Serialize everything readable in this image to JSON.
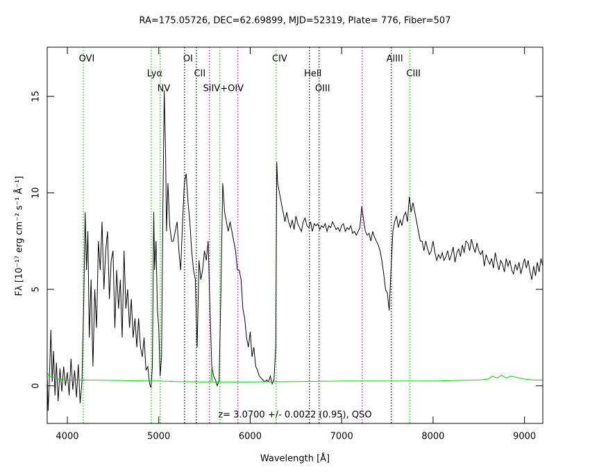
{
  "chart_data": {
    "type": "line",
    "title": "RA=175.05726, DEC=62.69899, MJD=52319, Plate= 776, Fiber=507",
    "xlabel": "Wavelength [Å]",
    "ylabel": "Fλ [10⁻¹⁷ erg cm⁻² s⁻¹ Å⁻¹]",
    "annotation": "z= 3.0700 +/- 0.0022 (0.95), QSO",
    "xlim": [
      3780,
      9200
    ],
    "ylim": [
      -1.95,
      17.55
    ],
    "xticks": [
      4000,
      5000,
      6000,
      7000,
      8000,
      9000
    ],
    "yticks": [
      0,
      5,
      10,
      15
    ],
    "series": [
      {
        "color": "#000000",
        "x": [
          3780,
          3790,
          3800,
          3820,
          3835,
          3850,
          3865,
          3880,
          3900,
          3920,
          3940,
          3960,
          3980,
          4000,
          4020,
          4040,
          4060,
          4080,
          4100,
          4120,
          4140,
          4160,
          4180,
          4195,
          4210,
          4225,
          4240,
          4260,
          4280,
          4300,
          4320,
          4340,
          4360,
          4380,
          4400,
          4420,
          4440,
          4460,
          4480,
          4500,
          4520,
          4540,
          4560,
          4580,
          4600,
          4620,
          4640,
          4660,
          4680,
          4700,
          4720,
          4740,
          4760,
          4780,
          4800,
          4820,
          4840,
          4860,
          4880,
          4900,
          4915,
          4930,
          4945,
          4955,
          4970,
          4985,
          5000,
          5015,
          5030,
          5045,
          5060,
          5075,
          5085,
          5100,
          5120,
          5140,
          5160,
          5180,
          5200,
          5220,
          5240,
          5260,
          5280,
          5300,
          5320,
          5340,
          5360,
          5380,
          5400,
          5420,
          5440,
          5460,
          5480,
          5500,
          5520,
          5540,
          5560,
          5580,
          5600,
          5620,
          5640,
          5660,
          5680,
          5700,
          5720,
          5740,
          5760,
          5780,
          5800,
          5820,
          5840,
          5860,
          5880,
          5900,
          5920,
          5940,
          5960,
          5980,
          6000,
          6020,
          6040,
          6060,
          6080,
          6100,
          6120,
          6140,
          6160,
          6180,
          6200,
          6220,
          6240,
          6260,
          6280,
          6290,
          6300,
          6320,
          6340,
          6360,
          6380,
          6400,
          6420,
          6440,
          6460,
          6480,
          6500,
          6520,
          6540,
          6560,
          6580,
          6600,
          6620,
          6640,
          6660,
          6680,
          6700,
          6720,
          6740,
          6760,
          6780,
          6800,
          6820,
          6840,
          6860,
          6880,
          6900,
          6920,
          6940,
          6960,
          6980,
          7000,
          7020,
          7040,
          7060,
          7080,
          7100,
          7120,
          7140,
          7160,
          7180,
          7200,
          7220,
          7240,
          7260,
          7280,
          7300,
          7320,
          7340,
          7360,
          7380,
          7400,
          7420,
          7440,
          7460,
          7480,
          7500,
          7520,
          7540,
          7560,
          7580,
          7600,
          7620,
          7640,
          7660,
          7680,
          7700,
          7720,
          7740,
          7760,
          7780,
          7800,
          7820,
          7840,
          7860,
          7880,
          7900,
          7920,
          7940,
          7960,
          7980,
          8000,
          8020,
          8040,
          8060,
          8080,
          8100,
          8120,
          8140,
          8160,
          8180,
          8200,
          8220,
          8240,
          8260,
          8280,
          8300,
          8320,
          8340,
          8360,
          8380,
          8400,
          8420,
          8440,
          8460,
          8480,
          8500,
          8520,
          8540,
          8560,
          8580,
          8600,
          8620,
          8640,
          8660,
          8680,
          8700,
          8720,
          8740,
          8760,
          8780,
          8800,
          8820,
          8840,
          8860,
          8880,
          8900,
          8920,
          8940,
          8960,
          8980,
          9000,
          9020,
          9040,
          9060,
          9080,
          9100,
          9120,
          9140,
          9160,
          9180,
          9200
        ],
        "values": [
          0.6,
          -1.3,
          -0.2,
          2.9,
          0.2,
          1.8,
          -0.5,
          1.2,
          -0.8,
          0.9,
          -0.3,
          1.0,
          0.0,
          0.7,
          -0.5,
          1.4,
          -0.2,
          0.8,
          -0.6,
          1.1,
          -0.9,
          0.2,
          4.5,
          9.0,
          6.0,
          8.0,
          2.5,
          5.5,
          1.0,
          5.0,
          3.0,
          7.5,
          6.0,
          8.5,
          5.0,
          7.0,
          8.0,
          4.5,
          6.5,
          7.0,
          3.0,
          6.0,
          4.0,
          5.5,
          2.5,
          7.0,
          4.0,
          5.0,
          3.0,
          4.5,
          2.5,
          3.5,
          2.0,
          3.5,
          2.0,
          1.5,
          2.5,
          0.8,
          1.0,
          0.1,
          -0.1,
          1.0,
          9.0,
          6.0,
          7.5,
          4.0,
          3.0,
          0.5,
          1.5,
          9.0,
          15.3,
          12.0,
          8.0,
          10.5,
          8.3,
          7.5,
          7.5,
          8.0,
          8.5,
          7.0,
          6.0,
          8.5,
          10.5,
          11.0,
          9.5,
          8.5,
          7.0,
          6.0,
          5.5,
          2.0,
          6.5,
          5.5,
          6.0,
          7.0,
          6.5,
          7.5,
          4.0,
          1.0,
          0.5,
          0.3,
          0.0,
          0.3,
          5.0,
          10.5,
          9.0,
          8.5,
          8.0,
          8.5,
          8.0,
          7.5,
          7.0,
          6.0,
          6.0,
          5.5,
          4.0,
          3.5,
          2.5,
          2.0,
          2.8,
          1.5,
          2.0,
          1.0,
          0.8,
          0.5,
          0.4,
          0.3,
          0.2,
          0.3,
          0.2,
          0.5,
          0.1,
          0.3,
          2.0,
          11.6,
          10.5,
          10.0,
          9.5,
          9.0,
          8.5,
          9.0,
          8.5,
          8.2,
          8.6,
          8.1,
          8.8,
          8.4,
          8.2,
          8.0,
          8.5,
          8.7,
          8.3,
          8.2,
          8.5,
          8.0,
          8.4,
          8.3,
          8.4,
          8.1,
          8.3,
          8.2,
          8.4,
          8.0,
          8.3,
          8.2,
          8.5,
          8.3,
          8.1,
          8.2,
          8.0,
          8.3,
          8.4,
          8.0,
          8.2,
          8.1,
          8.3,
          7.9,
          8.0,
          7.8,
          8.0,
          8.2,
          9.3,
          8.6,
          8.0,
          7.8,
          7.9,
          7.5,
          8.0,
          7.7,
          7.5,
          7.3,
          7.0,
          6.5,
          5.8,
          5.0,
          4.8,
          3.9,
          6.0,
          8.0,
          8.5,
          8.8,
          8.2,
          8.6,
          8.3,
          8.8,
          9.0,
          8.5,
          9.8,
          9.0,
          9.5,
          9.0,
          8.5,
          8.0,
          7.5,
          7.5,
          7.0,
          7.5,
          7.1,
          6.8,
          7.0,
          7.5,
          6.9,
          6.5,
          6.8,
          6.6,
          6.9,
          6.5,
          6.7,
          7.0,
          6.5,
          6.8,
          7.2,
          6.4,
          6.9,
          7.1,
          6.7,
          7.3,
          6.9,
          7.5,
          7.4,
          7.0,
          7.6,
          7.2,
          6.9,
          7.4,
          7.0,
          6.8,
          7.0,
          6.2,
          6.8,
          6.5,
          6.3,
          6.6,
          6.1,
          6.9,
          6.4,
          6.0,
          6.5,
          6.3,
          5.9,
          6.6,
          6.2,
          6.5,
          6.0,
          5.8,
          6.3,
          6.0,
          6.4,
          5.8,
          6.2,
          6.6,
          6.1,
          6.5,
          5.9,
          5.5,
          6.2,
          5.7,
          6.4,
          5.9,
          6.6,
          6.2
        ]
      },
      {
        "color": "#00dd00",
        "x": [
          3780,
          3800,
          3850,
          3900,
          4000,
          4200,
          4500,
          4800,
          5000,
          5200,
          5500,
          5570,
          5577,
          5585,
          5700,
          6000,
          6500,
          7000,
          7500,
          8000,
          8300,
          8500,
          8600,
          8650,
          8700,
          8750,
          8800,
          8850,
          8900,
          8950,
          9000,
          9100,
          9200
        ],
        "values": [
          0.7,
          0.5,
          0.45,
          0.35,
          0.3,
          0.3,
          0.28,
          0.26,
          0.25,
          0.22,
          0.2,
          0.2,
          0.9,
          0.2,
          0.2,
          0.2,
          0.22,
          0.25,
          0.25,
          0.25,
          0.28,
          0.3,
          0.35,
          0.5,
          0.4,
          0.55,
          0.4,
          0.5,
          0.45,
          0.4,
          0.35,
          0.3,
          0.3
        ]
      }
    ],
    "lines": [
      {
        "wavelength": 4175,
        "label": "OVI",
        "color": "#00cc00"
      },
      {
        "wavelength": 4918,
        "label": "Lyα",
        "color": "#00cc00"
      },
      {
        "wavelength": 5017,
        "label": "NV",
        "color": "#00cc00"
      },
      {
        "wavelength": 5282,
        "label": "OI",
        "color": "#000000"
      },
      {
        "wavelength": 5411,
        "label": "CII",
        "color": "#000000"
      },
      {
        "wavelength": 5555,
        "color": "#cc00cc"
      },
      {
        "wavelength": 5669,
        "label": "SiIV+OIV",
        "color": "#00cc00"
      },
      {
        "wavelength": 5866,
        "color": "#cc00cc"
      },
      {
        "wavelength": 6284,
        "label": "CIV",
        "color": "#00cc00"
      },
      {
        "wavelength": 6648,
        "label": "HeII",
        "color": "#000000"
      },
      {
        "wavelength": 6754,
        "label": "OIII",
        "color": "#000000"
      },
      {
        "wavelength": 7225,
        "color": "#cc00cc"
      },
      {
        "wavelength": 7543,
        "label": "AlIII",
        "color": "#000000"
      },
      {
        "wavelength": 7748,
        "label": "CIII",
        "color": "#00cc00"
      }
    ]
  }
}
